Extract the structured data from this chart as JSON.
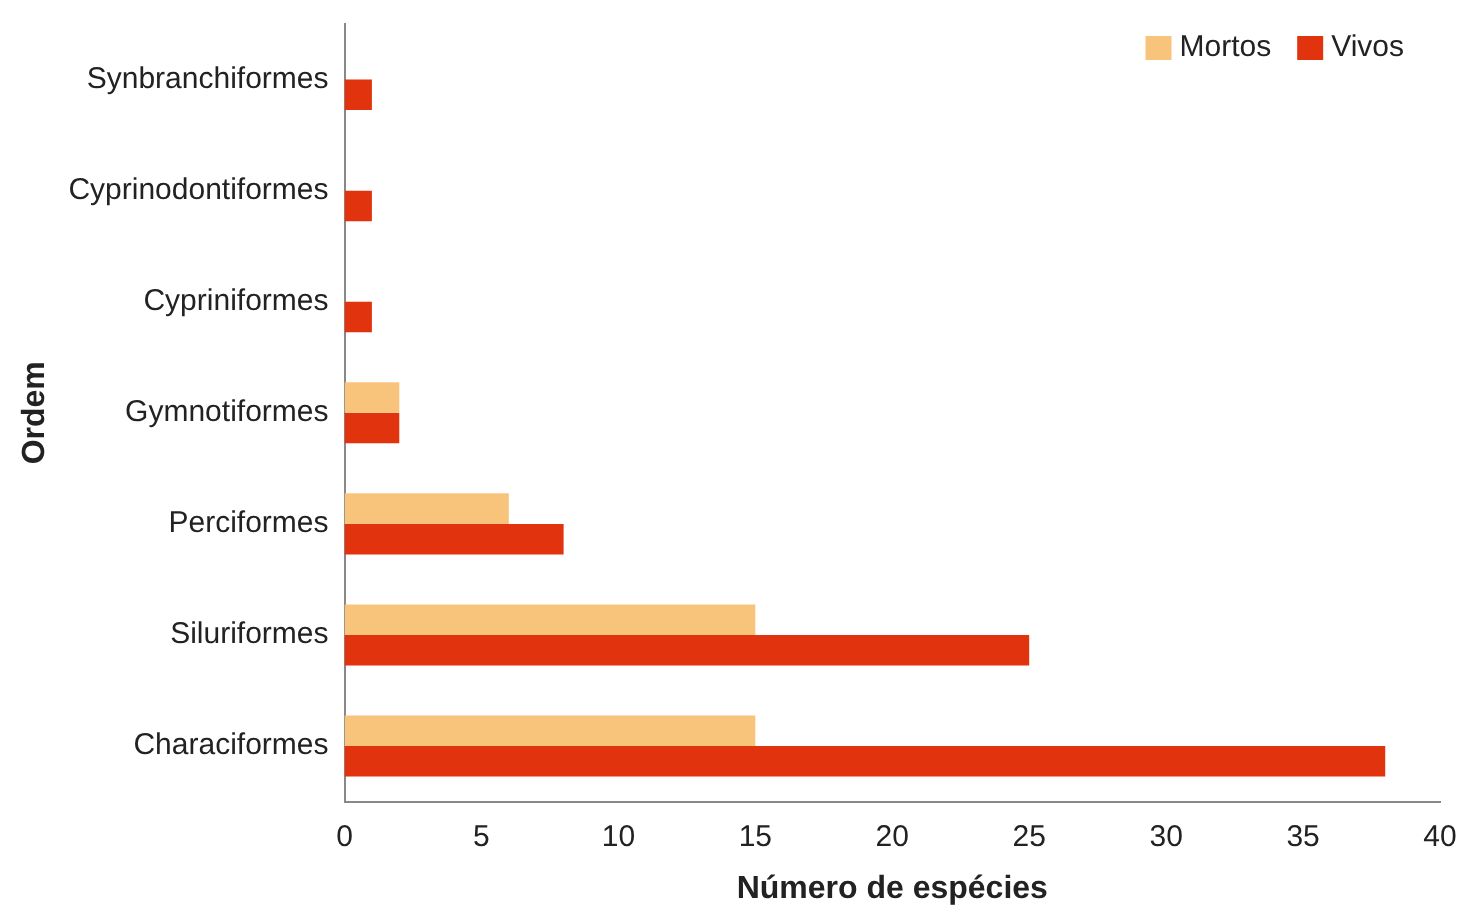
{
  "chart_data": {
    "type": "bar",
    "orientation": "horizontal",
    "xlabel": "Número de espécies",
    "ylabel": "Ordem",
    "categories": [
      "Synbranchiformes",
      "Cyprinodontiformes",
      "Cypriniformes",
      "Gymnotiformes",
      "Perciformes",
      "Siluriformes",
      "Characiformes"
    ],
    "series": [
      {
        "name": "Mortos",
        "color": "#f8c47c",
        "values": [
          0,
          0,
          0,
          2,
          6,
          15,
          15
        ]
      },
      {
        "name": "Vivos",
        "color": "#e2330f",
        "values": [
          1,
          1,
          1,
          2,
          8,
          25,
          38
        ]
      }
    ],
    "xlim": [
      0,
      40
    ],
    "xticks": [
      0,
      5,
      10,
      15,
      20,
      25,
      30,
      35,
      40
    ],
    "grid": false,
    "legend": "top right"
  }
}
